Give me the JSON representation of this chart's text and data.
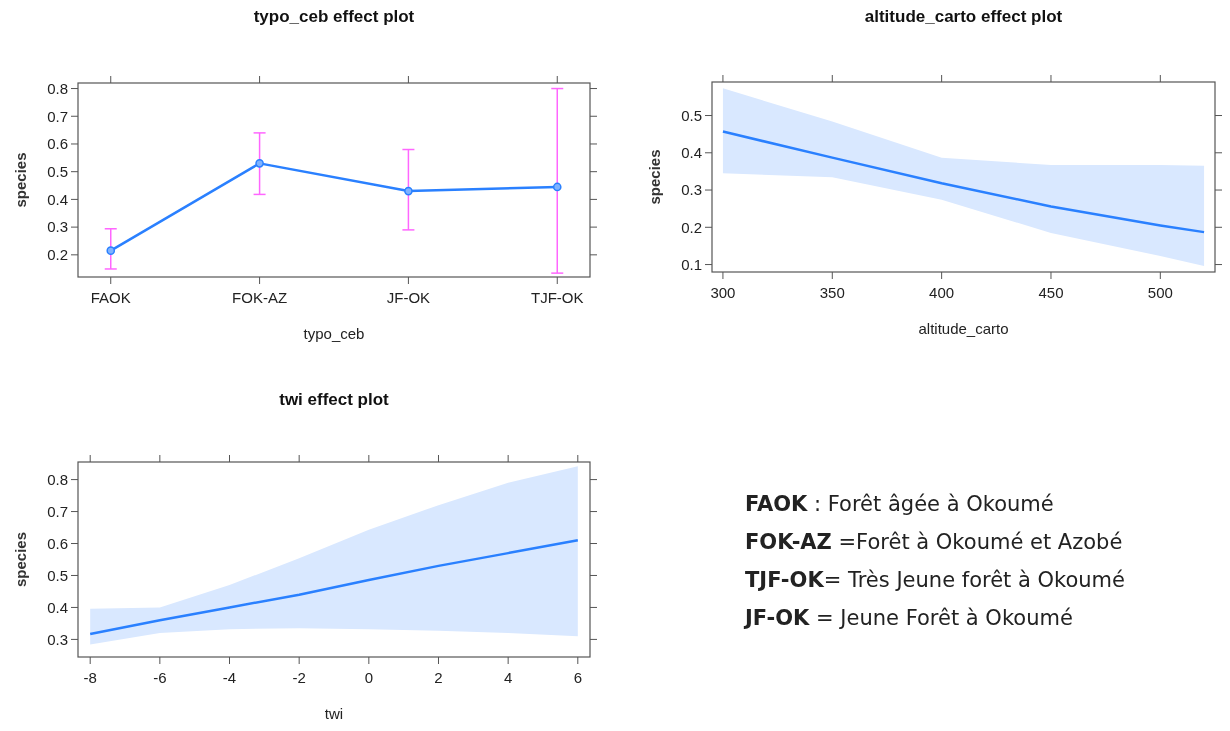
{
  "chart_data": [
    {
      "type": "line",
      "title": "typo_ceb effect plot",
      "xlabel": "typo_ceb",
      "ylabel": "species",
      "categories": [
        "FAOK",
        "FOK-AZ",
        "JF-OK",
        "TJF-OK"
      ],
      "ylim": [
        0.12,
        0.82
      ],
      "yticks": [
        0.2,
        0.3,
        0.4,
        0.5,
        0.6,
        0.7,
        0.8
      ],
      "marker": "circle",
      "series": [
        {
          "color": "#2a80ff",
          "values": [
            0.215,
            0.53,
            0.43,
            0.445
          ],
          "errors": [
            [
              0.149,
              0.294
            ],
            [
              0.418,
              0.64
            ],
            [
              0.29,
              0.58
            ],
            [
              0.134,
              0.8
            ]
          ]
        }
      ]
    },
    {
      "type": "line",
      "title": "altitude_carto effect plot",
      "xlabel": "altitude_carto",
      "ylabel": "species",
      "xlim": [
        295,
        525
      ],
      "xticks": [
        300,
        350,
        400,
        450,
        500
      ],
      "ylim": [
        0.08,
        0.59
      ],
      "yticks": [
        0.1,
        0.2,
        0.3,
        0.4,
        0.5
      ],
      "series": [
        {
          "color": "#2a80ff",
          "x": [
            300,
            350,
            400,
            450,
            500,
            520
          ],
          "values": [
            0.457,
            0.387,
            0.318,
            0.256,
            0.205,
            0.187
          ],
          "lower": [
            0.345,
            0.334,
            0.274,
            0.185,
            0.123,
            0.096
          ],
          "upper": [
            0.573,
            0.484,
            0.387,
            0.367,
            0.367,
            0.365
          ]
        }
      ]
    },
    {
      "type": "line",
      "title": "twi effect plot",
      "xlabel": "twi",
      "ylabel": "species",
      "xlim": [
        -8.35,
        6.35
      ],
      "xticks": [
        -8,
        -6,
        -4,
        -2,
        0,
        2,
        4,
        6
      ],
      "ylim": [
        0.245,
        0.855
      ],
      "yticks": [
        0.3,
        0.4,
        0.5,
        0.6,
        0.7,
        0.8
      ],
      "series": [
        {
          "color": "#2a80ff",
          "x": [
            -8,
            -6,
            -4,
            -2,
            0,
            2,
            4,
            6
          ],
          "values": [
            0.317,
            0.36,
            0.4,
            0.44,
            0.486,
            0.53,
            0.57,
            0.61
          ],
          "lower": [
            0.284,
            0.32,
            0.332,
            0.335,
            0.332,
            0.327,
            0.32,
            0.31
          ],
          "upper": [
            0.396,
            0.4,
            0.47,
            0.554,
            0.643,
            0.72,
            0.79,
            0.842
          ]
        }
      ]
    },
    {
      "type": "other",
      "annotations": [
        "FAOK : Forêt âgée à Okoumé",
        "FOK-AZ =Forêt à Okoumé et Azobé",
        "TJF-OK= Très Jeune forêt à Okoumé",
        "JF-OK = Jeune Forêt à Okoumé"
      ]
    }
  ]
}
